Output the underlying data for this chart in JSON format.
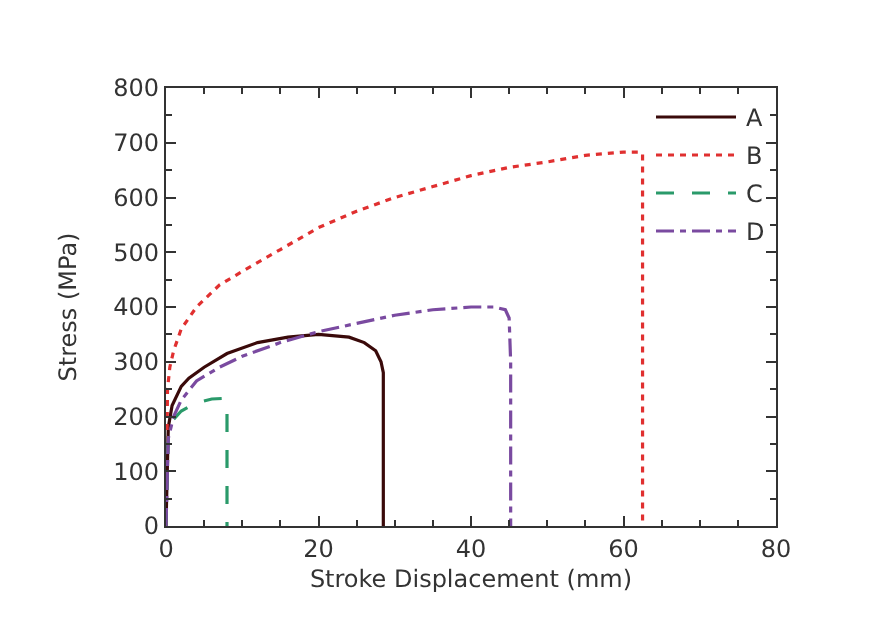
{
  "chart_data": {
    "type": "line",
    "xlabel": "Stroke Displacement (mm)",
    "ylabel": "Stress (MPa)",
    "xlim": [
      0,
      80
    ],
    "xticks": [
      0,
      20,
      40,
      60,
      80
    ],
    "ylim": [
      0,
      800
    ],
    "yticks": [
      0,
      100,
      200,
      300,
      400,
      500,
      600,
      700,
      800
    ],
    "legend": "top right",
    "series": [
      {
        "name": "A",
        "color": "#3a0a0a",
        "line_style": "solid",
        "x": [
          0,
          0.3,
          0.8,
          2,
          3,
          5,
          8,
          12,
          16,
          20,
          24,
          26,
          27.5,
          28.2,
          28.5,
          28.5
        ],
        "values": [
          0,
          180,
          220,
          255,
          270,
          290,
          315,
          335,
          345,
          350,
          345,
          335,
          320,
          300,
          280,
          0
        ]
      },
      {
        "name": "B",
        "color": "#e03030",
        "line_style": "dotted",
        "x": [
          0,
          0.2,
          0.5,
          1,
          2,
          4,
          7,
          10,
          15,
          20,
          25,
          30,
          35,
          40,
          45,
          50,
          55,
          60,
          62,
          62.5,
          62.5
        ],
        "values": [
          0,
          250,
          290,
          320,
          360,
          400,
          440,
          465,
          505,
          545,
          575,
          600,
          620,
          640,
          655,
          665,
          677,
          683,
          683,
          680,
          0
        ]
      },
      {
        "name": "C",
        "color": "#2a9a6a",
        "line_style": "dashed",
        "x": [
          0,
          0.3,
          1,
          2,
          4,
          6,
          7.5,
          8,
          8,
          8
        ],
        "values": [
          0,
          170,
          195,
          210,
          225,
          232,
          233,
          220,
          150,
          0
        ]
      },
      {
        "name": "D",
        "color": "#7a4aa0",
        "line_style": "dashdot",
        "x": [
          0,
          0.3,
          1,
          2,
          4,
          7,
          10,
          15,
          20,
          25,
          30,
          35,
          40,
          43,
          44.5,
          45,
          45.2,
          45.2
        ],
        "values": [
          0,
          160,
          200,
          230,
          265,
          290,
          310,
          335,
          355,
          370,
          385,
          395,
          400,
          400,
          395,
          380,
          300,
          0
        ]
      }
    ]
  }
}
